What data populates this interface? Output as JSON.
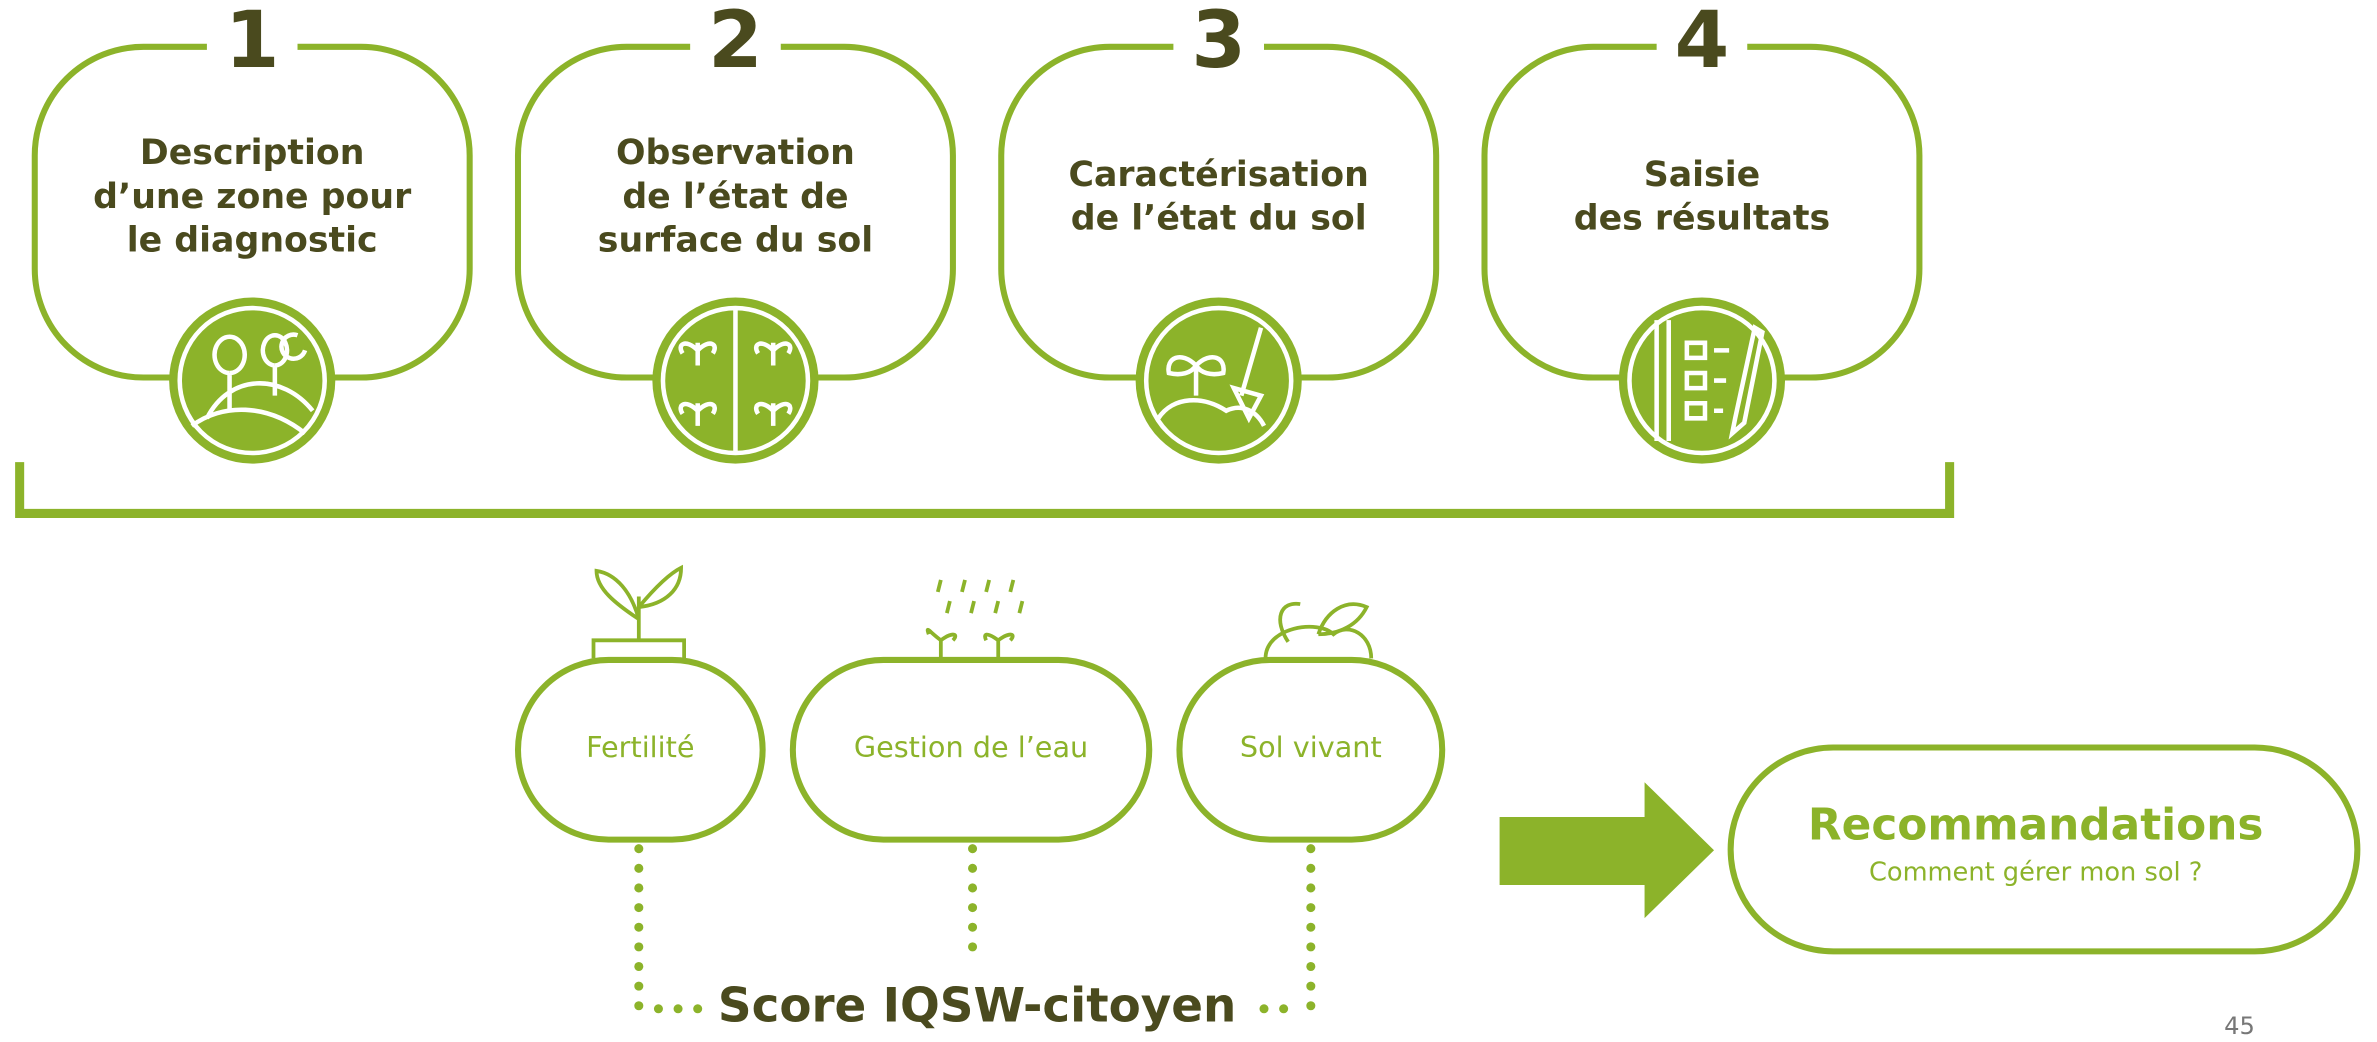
{
  "steps": [
    {
      "number": "1",
      "lines": [
        "Description",
        "d’une zone pour",
        "le diagnostic"
      ]
    },
    {
      "number": "2",
      "lines": [
        "Observation",
        "de l’état de",
        "surface du sol"
      ]
    },
    {
      "number": "3",
      "lines": [
        "Caractérisation",
        "de l’état du sol"
      ]
    },
    {
      "number": "4",
      "lines": [
        "Saisie",
        "des résultats"
      ]
    }
  ],
  "indicators": [
    "Fertilité",
    "Gestion de l’eau",
    "Sol vivant"
  ],
  "score": "Score IQSW-citoyen",
  "recommendation": {
    "title": "Recommandations",
    "subtitle": "Comment gérer mon sol ?"
  },
  "page_number": "45"
}
